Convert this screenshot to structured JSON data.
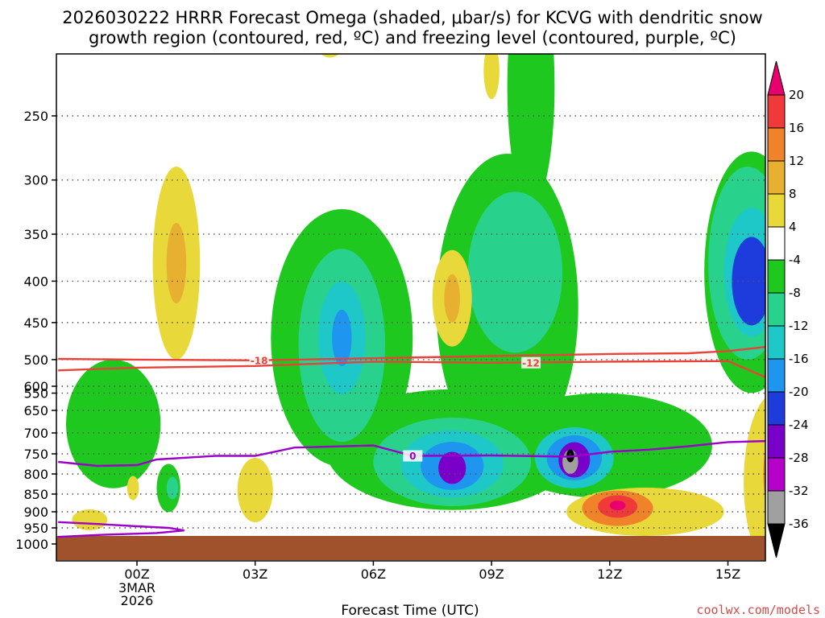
{
  "title": {
    "line1": "2026030222 HRRR Forecast Omega (shaded, μbar/s) for KCVG with dendritic snow",
    "line2": "growth region (contoured, red, ºC) and freezing level (contoured, purple, ºC)"
  },
  "credit": "coolwx.com/models",
  "colors": {
    "ground": "#a0522d",
    "isotherm_dgz": "#e8423a",
    "freezing_level": "#9a00c8",
    "grid": "#555555"
  },
  "chart_data": {
    "type": "time-height cross-section",
    "title": "2026030222 HRRR Forecast Omega (shaded, μbar/s) for KCVG",
    "xlabel": "Forecast Time (UTC)",
    "ylabel": "Pressure (hPa)",
    "x_unit": "hours after 00Z 3 Mar 2026",
    "xlim": [
      -2,
      16.5
    ],
    "ylim": [
      1000,
      200
    ],
    "x_ticks": [
      {
        "hour": 0,
        "label": "00Z",
        "sublabel": [
          "3MAR",
          "2026"
        ]
      },
      {
        "hour": 3,
        "label": "03Z"
      },
      {
        "hour": 6,
        "label": "06Z"
      },
      {
        "hour": 9,
        "label": "09Z"
      },
      {
        "hour": 12,
        "label": "12Z"
      },
      {
        "hour": 15,
        "label": "15Z"
      }
    ],
    "y_ticks": [
      250,
      300,
      350,
      400,
      450,
      500,
      550,
      600,
      650,
      700,
      750,
      800,
      850,
      900,
      950,
      1000
    ],
    "colorbar": {
      "unit": "μbar/s",
      "levels": [
        20,
        16,
        12,
        8,
        4,
        -4,
        -8,
        -12,
        -16,
        -20,
        -24,
        -28,
        -32,
        -36
      ],
      "colors": [
        "#e8006e",
        "#f03a3a",
        "#f0822a",
        "#e8b030",
        "#e8d83a",
        "#ffffff",
        "#1ec81e",
        "#28d28c",
        "#1ec8c8",
        "#1e96f0",
        "#1e3cdc",
        "#7800c8",
        "#b400c8",
        "#a0a0a0",
        "#000000"
      ]
    },
    "features": [
      {
        "name": "descent-maximum-0100",
        "hour": 1,
        "pressure_min": 270,
        "pressure_max": 500,
        "omega_peak": 8
      },
      {
        "name": "ascent-core-0500",
        "hour": 5,
        "pressure_min": 400,
        "pressure_max": 560,
        "omega_peak": -16
      },
      {
        "name": "descent-maximum-0800-upper",
        "hour": 8,
        "pressure_min": 400,
        "pressure_max": 470,
        "omega_peak": 8
      },
      {
        "name": "ascent-core-0800-lower",
        "hour": 8,
        "pressure_min": 740,
        "pressure_max": 830,
        "omega_peak": -28
      },
      {
        "name": "ascent-core-1100",
        "hour": 11,
        "pressure_min": 730,
        "pressure_max": 810,
        "omega_peak": -36
      },
      {
        "name": "descent-maximum-1200",
        "hour": 12.2,
        "pressure_min": 850,
        "pressure_max": 920,
        "omega_peak": 20
      },
      {
        "name": "ascent-core-1530",
        "hour": 15.5,
        "pressure_min": 370,
        "pressure_max": 440,
        "omega_peak": -24
      },
      {
        "name": "descent-maximum-1630",
        "hour": 16.4,
        "pressure_min": 700,
        "pressure_max": 900,
        "omega_peak": 20
      }
    ],
    "contours": [
      {
        "name": "dgz-minus-18",
        "label": "-18",
        "value_c": -18,
        "label_hour": 3.1,
        "points": [
          [
            -2,
            499
          ],
          [
            0,
            500
          ],
          [
            3,
            501
          ],
          [
            6,
            498
          ],
          [
            9,
            495
          ],
          [
            12,
            492
          ],
          [
            14,
            491
          ],
          [
            15,
            488
          ],
          [
            16.5,
            479
          ]
        ]
      },
      {
        "name": "dgz-minus-12",
        "label": "-12",
        "value_c": -12,
        "label_hour": 10,
        "points": [
          [
            -2,
            571
          ],
          [
            0,
            566
          ],
          [
            3,
            563
          ],
          [
            6,
            555
          ],
          [
            9,
            557
          ],
          [
            12,
            555
          ],
          [
            15,
            554
          ],
          [
            16.5,
            540
          ]
        ]
      },
      {
        "name": "freezing-level-0",
        "label": "0",
        "value_c": 0,
        "label_hour": 7,
        "points": [
          [
            -2,
            770
          ],
          [
            -1,
            780
          ],
          [
            0,
            778
          ],
          [
            0.5,
            764
          ],
          [
            2,
            755
          ],
          [
            3,
            755
          ],
          [
            4,
            735
          ],
          [
            6,
            730
          ],
          [
            7,
            755
          ],
          [
            9,
            754
          ],
          [
            11,
            757
          ],
          [
            12,
            745
          ],
          [
            13,
            740
          ],
          [
            14,
            732
          ],
          [
            15,
            722
          ],
          [
            16.5,
            718
          ]
        ]
      },
      {
        "name": "freezing-level-0-low",
        "label": "",
        "value_c": 0,
        "points": [
          [
            -2,
            932
          ],
          [
            -1,
            938
          ],
          [
            0,
            945
          ],
          [
            0.8,
            950
          ],
          [
            1.2,
            958
          ],
          [
            0.5,
            966
          ],
          [
            -1,
            972
          ],
          [
            -2,
            978
          ]
        ]
      }
    ],
    "ground_level_hpa": 975
  }
}
